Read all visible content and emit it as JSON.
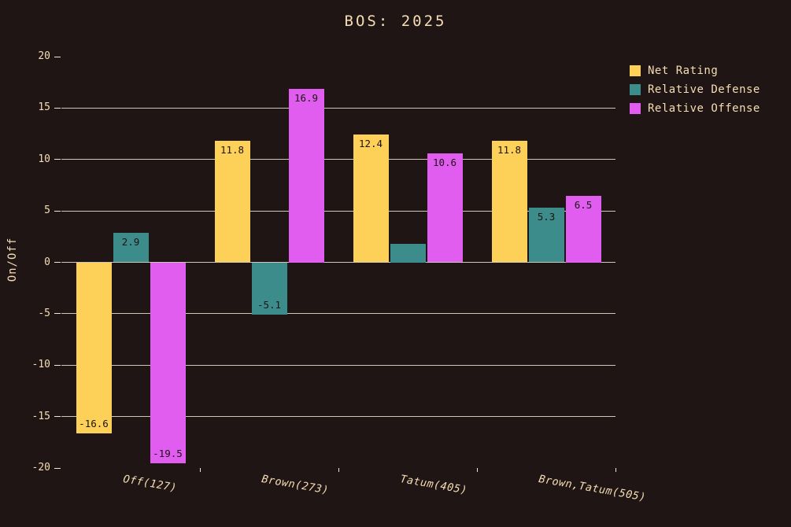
{
  "figure": {
    "background_color": "#201515",
    "text_color": "#f5deb3"
  },
  "chart_data": {
    "type": "bar",
    "title": "BOS: 2025",
    "xlabel": "",
    "ylabel": "On/Off",
    "ylim": [
      -20,
      20
    ],
    "yticks": [
      20,
      15,
      10,
      5,
      0,
      -5,
      -10,
      -15,
      -20
    ],
    "grid": "horizontal gridlines every 5 units, light lines on dark background, no line at +/-20",
    "legend_position": "upper-right outside plot",
    "grid_color": "#efe6d9",
    "bar_label_color": "#1b1212",
    "categories": [
      "Off(127)",
      "Brown(273)",
      "Tatum(405)",
      "Brown,Tatum(505)"
    ],
    "series": [
      {
        "name": "Net Rating",
        "color": "#fdd057",
        "values": [
          -16.6,
          11.8,
          12.4,
          11.8
        ],
        "bar_labels": [
          "-16.6",
          "11.8",
          "12.4",
          "11.8"
        ]
      },
      {
        "name": "Relative Defense",
        "color": "#3d8c8c",
        "values": [
          2.9,
          -5.1,
          1.8,
          5.3
        ],
        "bar_labels": [
          "2.9",
          "-5.1",
          "",
          "5.3"
        ]
      },
      {
        "name": "Relative Offense",
        "color": "#e05df0",
        "values": [
          -19.5,
          16.9,
          10.6,
          6.5
        ],
        "bar_labels": [
          "-19.5",
          "16.9",
          "10.6",
          "6.5"
        ]
      }
    ]
  }
}
